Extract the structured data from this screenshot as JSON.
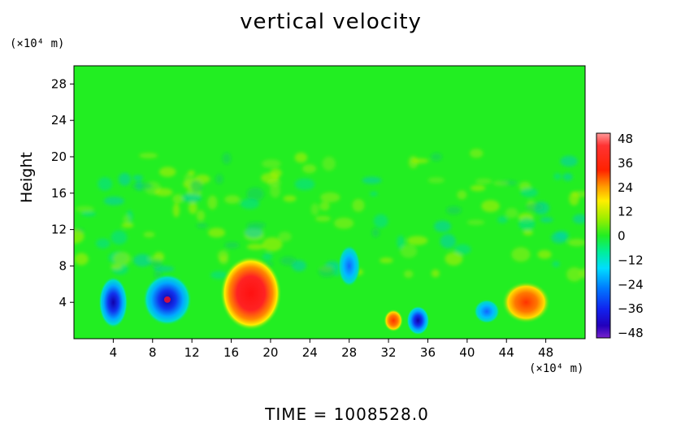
{
  "chart_data": {
    "type": "heatmap",
    "title": "vertical velocity",
    "ylabel": "Height",
    "x_unit": "(×10⁴ m)",
    "y_unit": "(×10⁴ m)",
    "xlim": [
      0,
      52
    ],
    "ylim": [
      0,
      30
    ],
    "x_ticks": [
      "4",
      "8",
      "12",
      "16",
      "20",
      "24",
      "28",
      "32",
      "36",
      "40",
      "44",
      "48"
    ],
    "y_ticks": [
      "4",
      "8",
      "12",
      "16",
      "20",
      "24",
      "28"
    ],
    "colorbar": {
      "ticks": [
        "48",
        "36",
        "24",
        "12",
        "0",
        "−12",
        "−24",
        "−36",
        "−48"
      ],
      "range": [
        -48,
        48
      ]
    },
    "features": [
      {
        "type": "updraft",
        "x": 18,
        "y": 5,
        "value": 45
      },
      {
        "type": "updraft",
        "x": 32.5,
        "y": 2,
        "value": 34
      },
      {
        "type": "updraft",
        "x": 46,
        "y": 4,
        "value": 33
      },
      {
        "type": "downdraft",
        "x": 9.5,
        "y": 4.3,
        "value": -48
      },
      {
        "type": "downdraft",
        "x": 4,
        "y": 4,
        "value": -30
      },
      {
        "type": "downdraft",
        "x": 35,
        "y": 2,
        "value": -34
      },
      {
        "type": "downdraft",
        "x": 42,
        "y": 3,
        "value": -28
      },
      {
        "type": "downdraft",
        "x": 28,
        "y": 8,
        "value": -22
      }
    ],
    "grid": false,
    "legend": "colorbar-right"
  },
  "footer": {
    "time_label": "TIME",
    "equals": "=",
    "time_value": "1008528.0"
  },
  "colors": {
    "background_field": "#22ee22",
    "max": "#ff4444",
    "min": "#3311cc"
  }
}
